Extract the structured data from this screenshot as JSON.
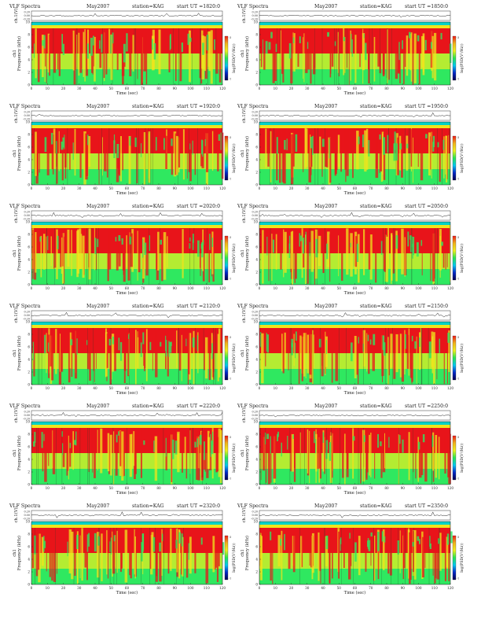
{
  "header": {
    "title": "VLF Spectra",
    "date": "May2007",
    "station": "station=KAG",
    "start_prefix": "start  UT  ="
  },
  "labels": {
    "ch_axis": "ch.1(V)",
    "freq_axis": "Frequency (kHz)",
    "ch_tag": "ch1",
    "time_axis": "Time  (sec)",
    "colorbar": "log(PSD(V²/Hz))"
  },
  "axes": {
    "time_range": [
      0,
      120
    ],
    "time_ticks": [
      "0",
      "10",
      "20",
      "30",
      "40",
      "50",
      "60",
      "70",
      "80",
      "90",
      "100",
      "110",
      "120"
    ],
    "freq_range": [
      0,
      10
    ],
    "freq_ticks": [
      "0",
      "2",
      "4",
      "6",
      "8",
      "10"
    ],
    "volt_ticks": [
      "0.20",
      "0.00",
      "-0.20"
    ],
    "cbar_ticks": [
      "-3",
      "-7"
    ]
  },
  "colors": {
    "background": "#00d2c8",
    "low": "#2fe860",
    "mid": "#b4ec32",
    "high": "#f0e41c",
    "peak": "#e8141a",
    "colorbar": [
      "#f01818",
      "#f0b41c",
      "#f0f01c",
      "#28e650",
      "#00c8f0",
      "#0028c8",
      "#000050"
    ]
  },
  "chart_data": [
    {
      "type": "heatmap",
      "start_ut": "1820:0",
      "xlim": [
        0,
        120
      ],
      "ylim": [
        0,
        10
      ],
      "band_khz": [
        5,
        9
      ],
      "cutoff_khz": 9.5
    },
    {
      "type": "heatmap",
      "start_ut": "1850:0",
      "xlim": [
        0,
        120
      ],
      "ylim": [
        0,
        10
      ],
      "band_khz": [
        5,
        9
      ],
      "cutoff_khz": 9.5
    },
    {
      "type": "heatmap",
      "start_ut": "1920:0",
      "xlim": [
        0,
        120
      ],
      "ylim": [
        0,
        10
      ],
      "band_khz": [
        5,
        9
      ],
      "cutoff_khz": 9.5
    },
    {
      "type": "heatmap",
      "start_ut": "1950:0",
      "xlim": [
        0,
        120
      ],
      "ylim": [
        0,
        10
      ],
      "band_khz": [
        5,
        9
      ],
      "cutoff_khz": 9.5
    },
    {
      "type": "heatmap",
      "start_ut": "2020:0",
      "xlim": [
        0,
        120
      ],
      "ylim": [
        0,
        10
      ],
      "band_khz": [
        5,
        9
      ],
      "cutoff_khz": 9.5
    },
    {
      "type": "heatmap",
      "start_ut": "2050:0",
      "xlim": [
        0,
        120
      ],
      "ylim": [
        0,
        10
      ],
      "band_khz": [
        5,
        9
      ],
      "cutoff_khz": 9.5
    },
    {
      "type": "heatmap",
      "start_ut": "2120:0",
      "xlim": [
        0,
        120
      ],
      "ylim": [
        0,
        10
      ],
      "band_khz": [
        5,
        9
      ],
      "cutoff_khz": 9.5
    },
    {
      "type": "heatmap",
      "start_ut": "2150:0",
      "xlim": [
        0,
        120
      ],
      "ylim": [
        0,
        10
      ],
      "band_khz": [
        5,
        9
      ],
      "cutoff_khz": 9.5
    },
    {
      "type": "heatmap",
      "start_ut": "2220:0",
      "xlim": [
        0,
        120
      ],
      "ylim": [
        0,
        10
      ],
      "band_khz": [
        5,
        9
      ],
      "cutoff_khz": 9.5
    },
    {
      "type": "heatmap",
      "start_ut": "2250:0",
      "xlim": [
        0,
        120
      ],
      "ylim": [
        0,
        10
      ],
      "band_khz": [
        5,
        9
      ],
      "cutoff_khz": 9.5
    },
    {
      "type": "heatmap",
      "start_ut": "2320:0",
      "xlim": [
        0,
        120
      ],
      "ylim": [
        0,
        10
      ],
      "band_khz": [
        5,
        9
      ],
      "cutoff_khz": 9.5
    },
    {
      "type": "heatmap",
      "start_ut": "2350:0",
      "xlim": [
        0,
        120
      ],
      "ylim": [
        0,
        10
      ],
      "band_khz": [
        5,
        9
      ],
      "cutoff_khz": 9.5
    }
  ]
}
